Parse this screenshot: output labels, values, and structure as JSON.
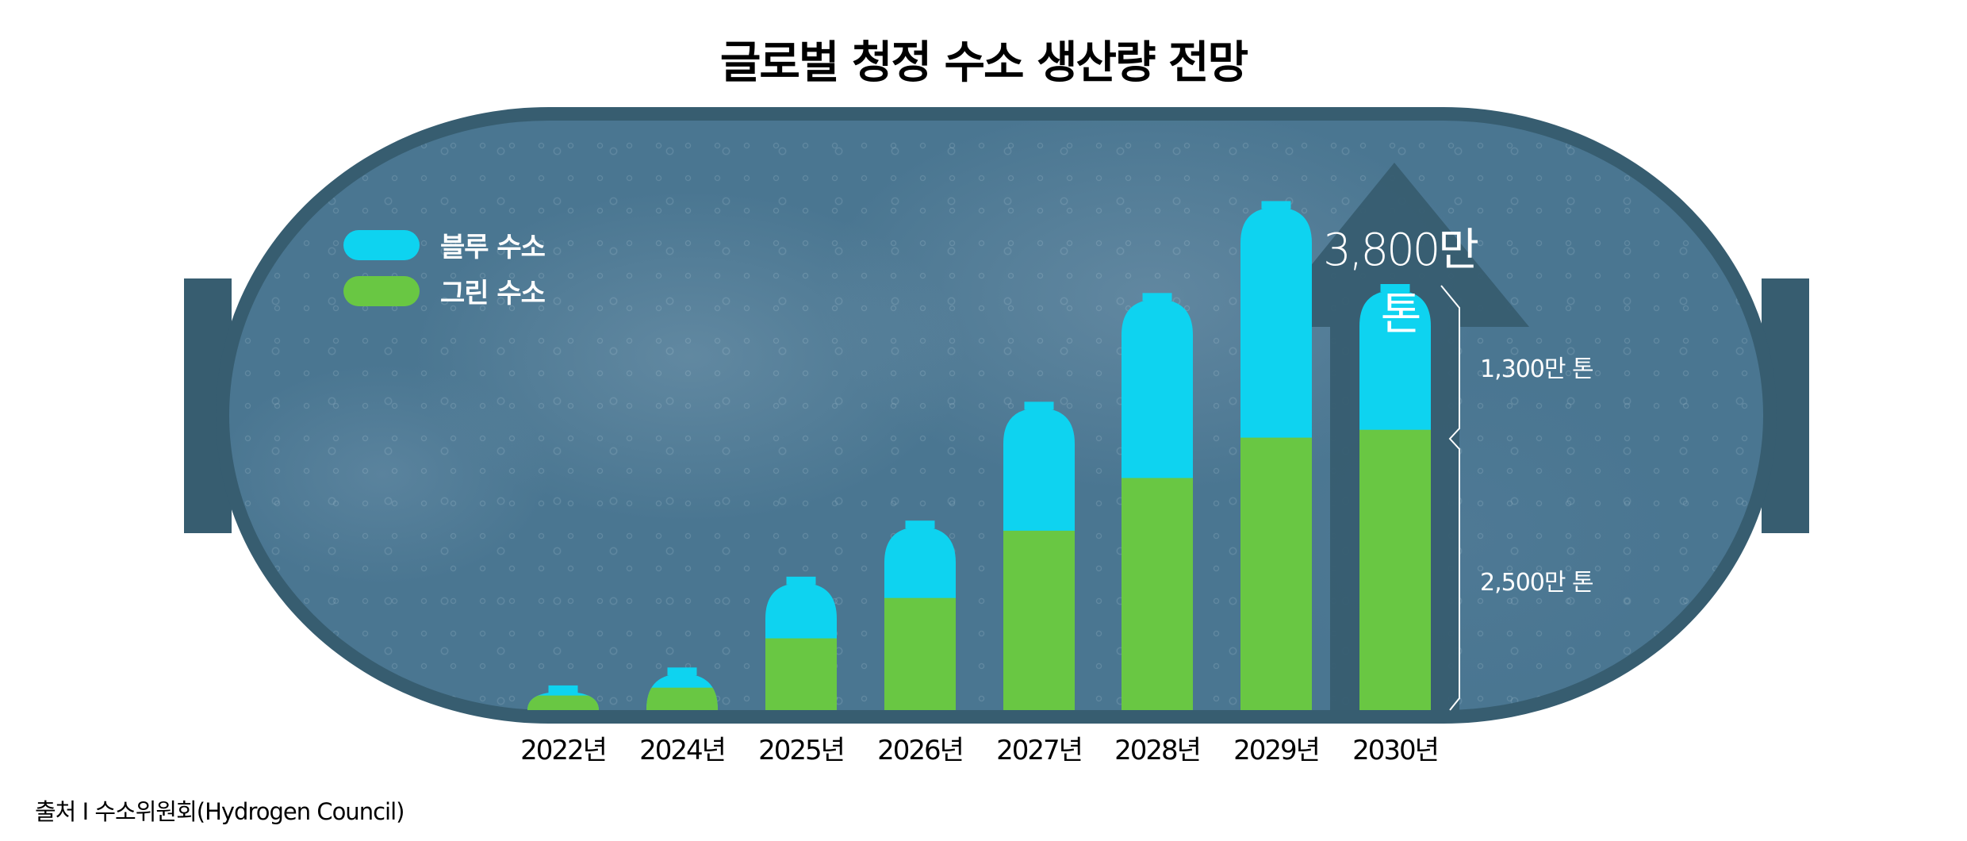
{
  "title": "글로벌 청정 수소 생산량 전망",
  "legend": [
    {
      "label": "블루 수소",
      "color": "#0ed3f0"
    },
    {
      "label": "그린 수소",
      "color": "#69c743"
    }
  ],
  "annotations": {
    "total": "3,800만 톤",
    "blue_2030": "1,300만 톤",
    "green_2030": "2,500만 톤"
  },
  "years": [
    "2022년",
    "2024년",
    "2025년",
    "2026년",
    "2027년",
    "2028년",
    "2029년",
    "2030년"
  ],
  "source": "출처 I 수소위원회(Hydrogen Council)",
  "colors": {
    "tank_border": "#375d70",
    "water": "#4a7691",
    "blue_hydrogen": "#0ed3f0",
    "green_hydrogen": "#69c743",
    "arrow": "#375d70"
  },
  "chart_data": {
    "type": "bar",
    "stacked": true,
    "title": "글로벌 청정 수소 생산량 전망",
    "xlabel": "",
    "ylabel": "",
    "unit": "만 톤",
    "categories": [
      "2022년",
      "2024년",
      "2025년",
      "2026년",
      "2027년",
      "2028년",
      "2029년",
      "2030년"
    ],
    "series": [
      {
        "name": "그린 수소",
        "color": "#69c743",
        "values": [
          130,
          200,
          640,
          1000,
          1600,
          2070,
          2430,
          2500
        ]
      },
      {
        "name": "블루 수소",
        "color": "#0ed3f0",
        "values": [
          90,
          180,
          550,
          690,
          1150,
          1650,
          2110,
          1300
        ]
      }
    ],
    "annotations": [
      {
        "text": "3,800만 톤",
        "target": "2030년 total"
      },
      {
        "text": "1,300만 톤",
        "target": "2030년 블루 수소"
      },
      {
        "text": "2,500만 톤",
        "target": "2030년 그린 수소"
      }
    ],
    "legend_position": "top-left",
    "grid": false,
    "source": "출처 I 수소위원회(Hydrogen Council)"
  }
}
